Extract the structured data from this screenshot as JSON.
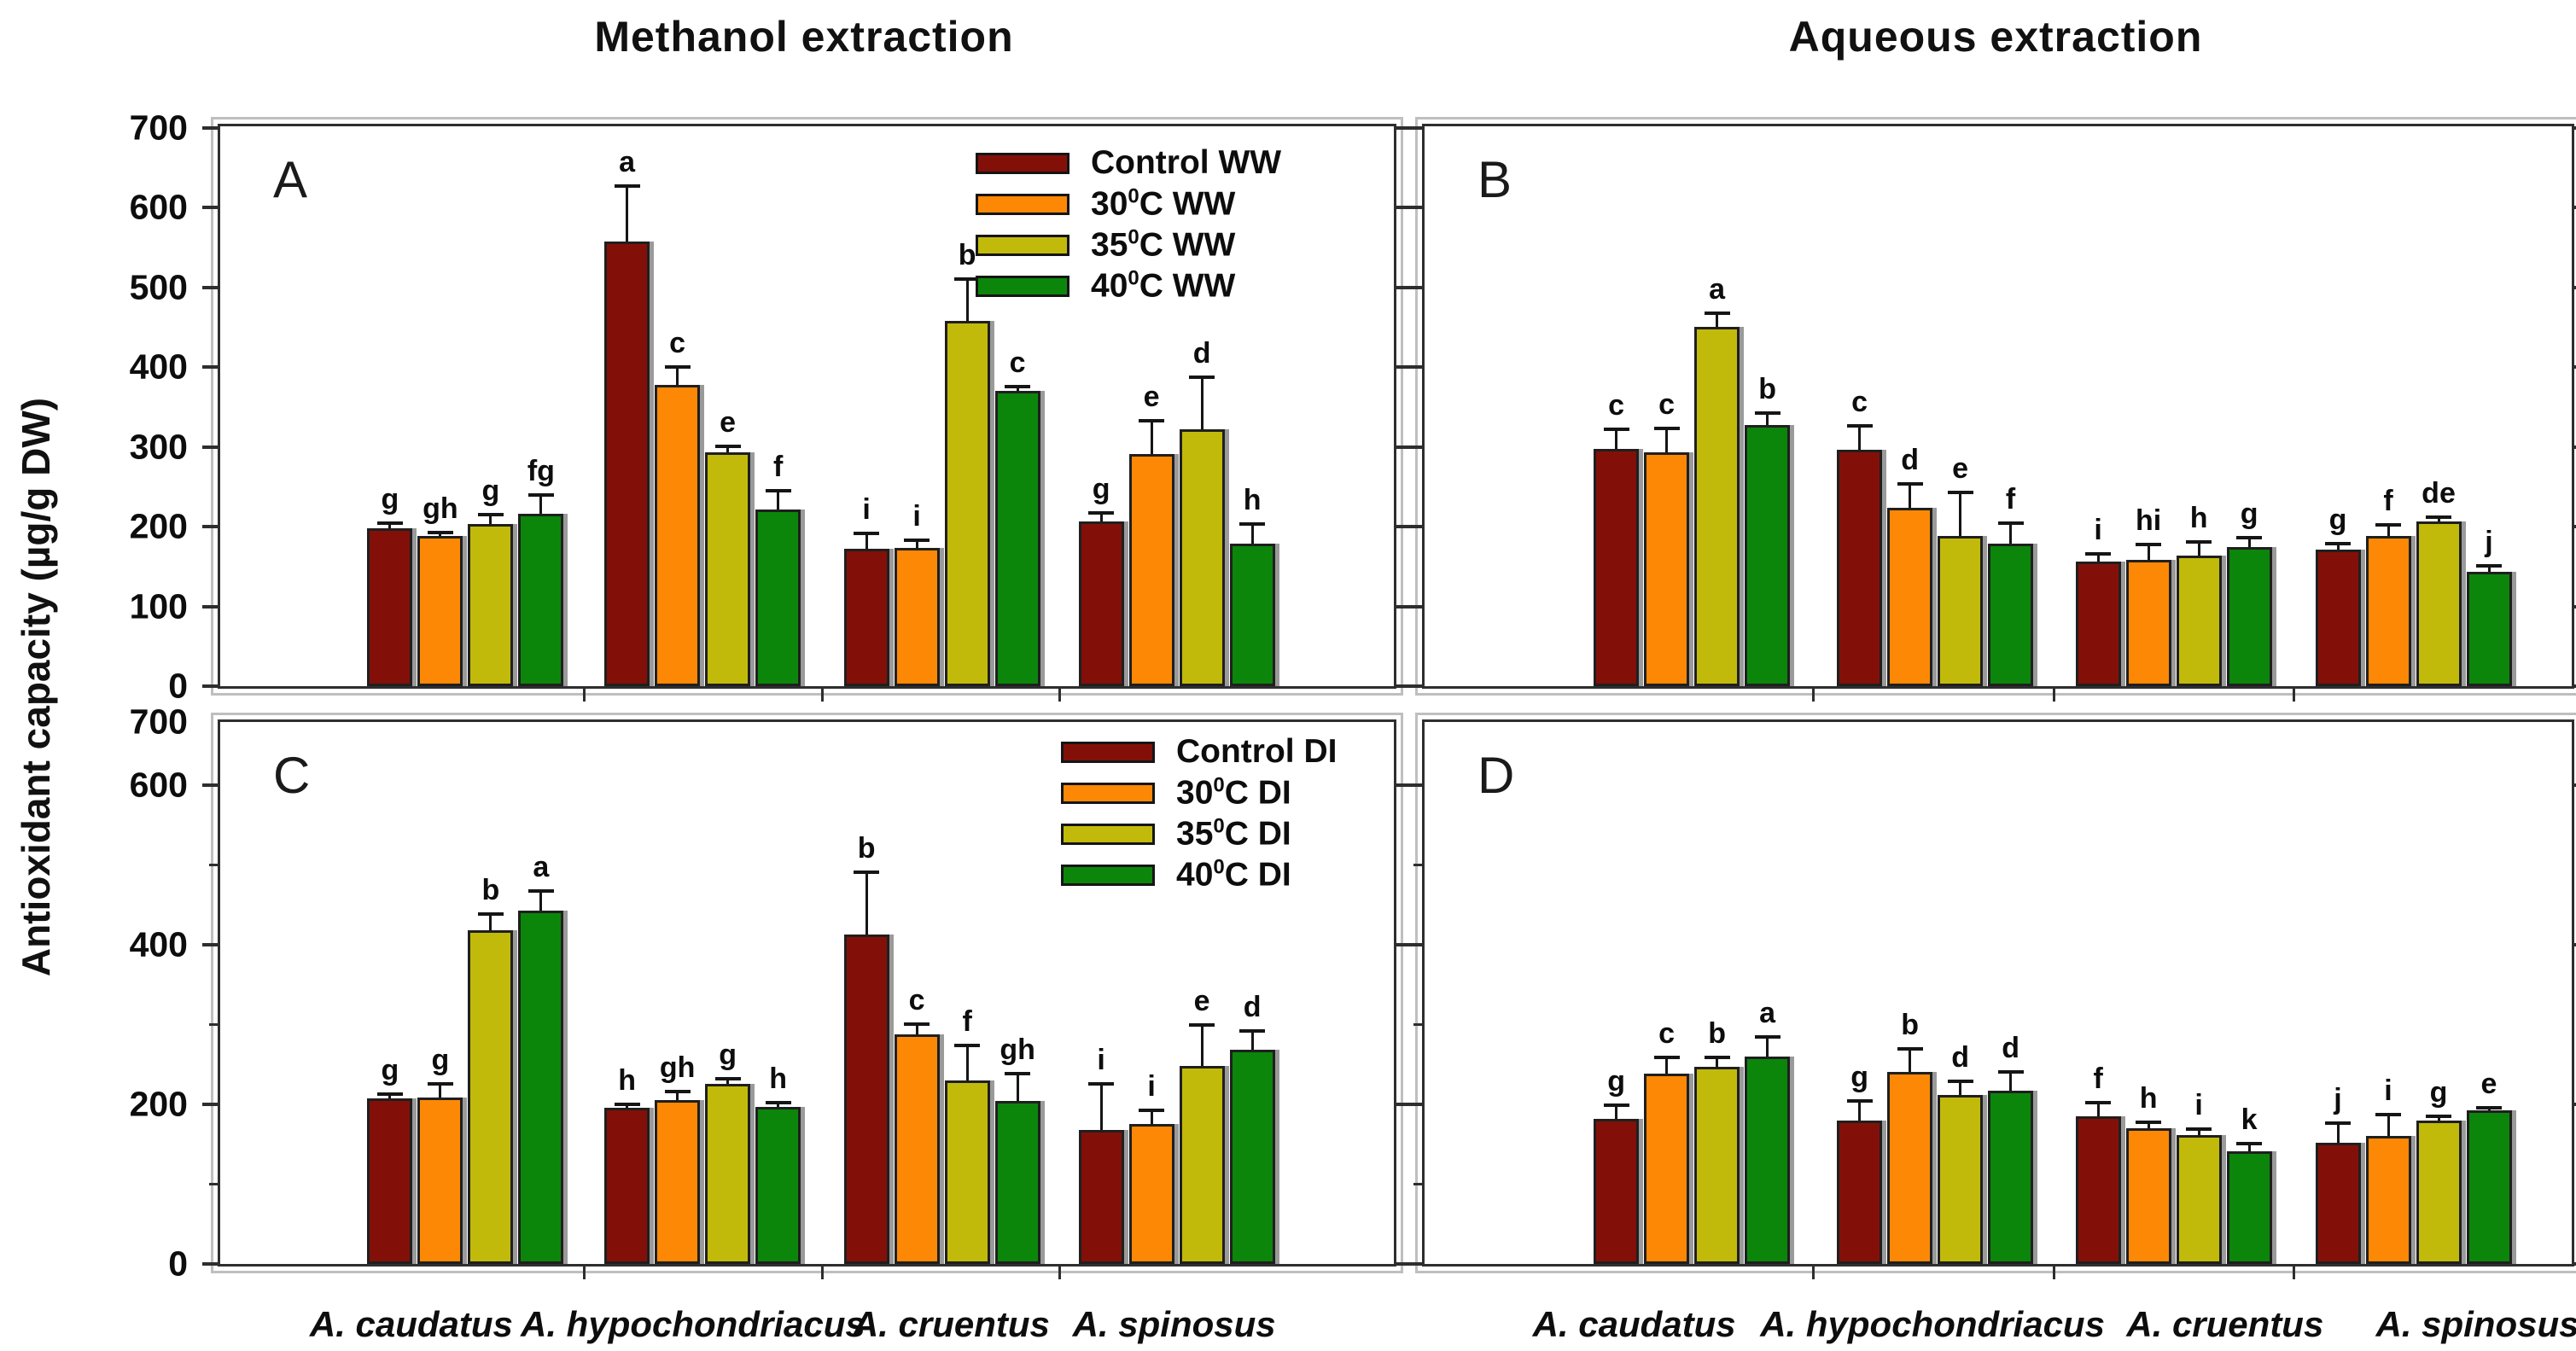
{
  "figure": {
    "column_titles": {
      "left": "Methanol extraction",
      "right": "Aqueous extraction"
    },
    "y_axis_title": "Antioxidant capacity (µg/g DW)",
    "species": [
      "A. caudatus",
      "A. hypochondriacus",
      "A. cruentus",
      "A. spinosus"
    ]
  },
  "colors": {
    "control": "#831008",
    "t30": "#fd8805",
    "t35": "#c2ba0b",
    "t40": "#0b860b",
    "bar_outline": "#1f1f1f",
    "bar_shadow": "#9a9a9a",
    "panel_border": "#2e2e2e",
    "outer_frame": "#bfbfbf"
  },
  "legend_ww": {
    "items": [
      {
        "pre": "Control WW",
        "sup": "",
        "post": ""
      },
      {
        "pre": "30",
        "sup": "0",
        "post": "C WW"
      },
      {
        "pre": "35",
        "sup": "0",
        "post": "C WW"
      },
      {
        "pre": "40",
        "sup": "0",
        "post": "C WW"
      }
    ]
  },
  "legend_di": {
    "items": [
      {
        "pre": "Control DI",
        "sup": "",
        "post": ""
      },
      {
        "pre": "30",
        "sup": "0",
        "post": "C DI"
      },
      {
        "pre": "35",
        "sup": "0",
        "post": "C DI"
      },
      {
        "pre": "40",
        "sup": "0",
        "post": "C DI"
      }
    ]
  },
  "chart_data": [
    {
      "type": "bar",
      "panel": "A",
      "extraction": "Methanol extraction",
      "water": "WW",
      "categories": [
        "A. caudatus",
        "A. hypochondriacus",
        "A. cruentus",
        "A. spinosus"
      ],
      "ylim": [
        0,
        700
      ],
      "ylabel": "Antioxidant capacity (µg/g DW)",
      "yticks": [
        {
          "v": 700,
          "label": "700"
        },
        {
          "v": 600,
          "label": "600"
        },
        {
          "v": 500,
          "label": "500"
        },
        {
          "v": 400,
          "label": "400"
        },
        {
          "v": 300,
          "label": "300"
        },
        {
          "v": 200,
          "label": "200"
        },
        {
          "v": 100,
          "label": "100"
        },
        {
          "v": 0,
          "label": "0"
        }
      ],
      "minor_yticks": [],
      "legend": "legend_ww",
      "series": [
        {
          "name": "Control WW",
          "color_key": "control",
          "values": [
            198,
            557,
            172,
            207
          ],
          "errors": [
            6,
            70,
            20,
            10
          ],
          "letters": [
            "g",
            "a",
            "i",
            "g"
          ]
        },
        {
          "name": "30°C WW",
          "color_key": "t30",
          "values": [
            188,
            378,
            173,
            291
          ],
          "errors": [
            5,
            22,
            10,
            42
          ],
          "letters": [
            "gh",
            "c",
            "i",
            "e"
          ]
        },
        {
          "name": "35°C WW",
          "color_key": "t35",
          "values": [
            203,
            293,
            458,
            322
          ],
          "errors": [
            12,
            8,
            52,
            65
          ],
          "letters": [
            "g",
            "e",
            "b",
            "d"
          ]
        },
        {
          "name": "40°C WW",
          "color_key": "t40",
          "values": [
            216,
            221,
            370,
            179
          ],
          "errors": [
            24,
            24,
            6,
            24
          ],
          "letters": [
            "fg",
            "f",
            "c",
            "h"
          ]
        }
      ]
    },
    {
      "type": "bar",
      "panel": "B",
      "extraction": "Aqueous extraction",
      "water": "WW",
      "categories": [
        "A. caudatus",
        "A. hypochondriacus",
        "A. cruentus",
        "A. spinosus"
      ],
      "ylim": [
        0,
        700
      ],
      "ylabel": "Antioxidant capacity (µg/g DW)",
      "yticks": [
        {
          "v": 700
        },
        {
          "v": 600
        },
        {
          "v": 500
        },
        {
          "v": 400
        },
        {
          "v": 300
        },
        {
          "v": 200
        },
        {
          "v": 100
        },
        {
          "v": 0
        }
      ],
      "minor_yticks": [],
      "legend": null,
      "series": [
        {
          "name": "Control WW",
          "color_key": "control",
          "values": [
            297,
            296,
            156,
            171
          ],
          "errors": [
            25,
            30,
            10,
            8
          ],
          "letters": [
            "c",
            "c",
            "i",
            "g"
          ]
        },
        {
          "name": "30°C WW",
          "color_key": "t30",
          "values": [
            293,
            224,
            158,
            188
          ],
          "errors": [
            30,
            30,
            20,
            14
          ],
          "letters": [
            "c",
            "d",
            "hi",
            "f"
          ]
        },
        {
          "name": "35°C WW",
          "color_key": "t35",
          "values": [
            450,
            188,
            164,
            207
          ],
          "errors": [
            18,
            55,
            17,
            5
          ],
          "letters": [
            "a",
            "e",
            "h",
            "de"
          ]
        },
        {
          "name": "40°C WW",
          "color_key": "t40",
          "values": [
            327,
            179,
            174,
            143
          ],
          "errors": [
            15,
            25,
            12,
            8
          ],
          "letters": [
            "b",
            "f",
            "g",
            "j"
          ]
        }
      ]
    },
    {
      "type": "bar",
      "panel": "C",
      "extraction": "Methanol extraction",
      "water": "DI",
      "categories": [
        "A. caudatus",
        "A. hypochondriacus",
        "A. cruentus",
        "A. spinosus"
      ],
      "ylim": [
        0,
        700
      ],
      "ylabel": "Antioxidant capacity (µg/g DW)",
      "yticks": [
        {
          "v": 700,
          "label": "700"
        },
        {
          "v": 600,
          "label": "600"
        },
        {
          "v": 400,
          "label": "400"
        },
        {
          "v": 200,
          "label": "200"
        },
        {
          "v": 0,
          "label": "0"
        }
      ],
      "minor_yticks": [
        100,
        300,
        500
      ],
      "legend": "legend_di",
      "series": [
        {
          "name": "Control DI",
          "color_key": "control",
          "values": [
            208,
            196,
            413,
            168
          ],
          "errors": [
            5,
            4,
            78,
            58
          ],
          "letters": [
            "g",
            "h",
            "b",
            "i"
          ]
        },
        {
          "name": "30°C DI",
          "color_key": "t30",
          "values": [
            209,
            205,
            288,
            175
          ],
          "errors": [
            17,
            11,
            13,
            18
          ],
          "letters": [
            "g",
            "gh",
            "c",
            "i"
          ]
        },
        {
          "name": "35°C DI",
          "color_key": "t35",
          "values": [
            418,
            226,
            230,
            248
          ],
          "errors": [
            20,
            6,
            44,
            52
          ],
          "letters": [
            "b",
            "g",
            "f",
            "e"
          ]
        },
        {
          "name": "40°C DI",
          "color_key": "t40",
          "values": [
            443,
            197,
            204,
            268
          ],
          "errors": [
            24,
            5,
            34,
            24
          ],
          "letters": [
            "a",
            "h",
            "gh",
            "d"
          ]
        }
      ]
    },
    {
      "type": "bar",
      "panel": "D",
      "extraction": "Aqueous extraction",
      "water": "DI",
      "categories": [
        "A. caudatus",
        "A. hypochondriacus",
        "A. cruentus",
        "A. spinosus"
      ],
      "ylim": [
        0,
        700
      ],
      "ylabel": "Antioxidant capacity (µg/g DW)",
      "yticks": [
        {
          "v": 600
        },
        {
          "v": 400
        },
        {
          "v": 200
        },
        {
          "v": 0
        }
      ],
      "minor_yticks": [
        100,
        300,
        500
      ],
      "legend": null,
      "series": [
        {
          "name": "Control DI",
          "color_key": "control",
          "values": [
            182,
            180,
            185,
            152
          ],
          "errors": [
            17,
            24,
            17,
            24
          ],
          "letters": [
            "g",
            "g",
            "f",
            "j"
          ]
        },
        {
          "name": "30°C DI",
          "color_key": "t30",
          "values": [
            238,
            241,
            170,
            160
          ],
          "errors": [
            21,
            29,
            8,
            27
          ],
          "letters": [
            "c",
            "b",
            "h",
            "i"
          ]
        },
        {
          "name": "35°C DI",
          "color_key": "t35",
          "values": [
            247,
            212,
            161,
            180
          ],
          "errors": [
            12,
            17,
            8,
            5
          ],
          "letters": [
            "b",
            "d",
            "i",
            "g"
          ]
        },
        {
          "name": "40°C DI",
          "color_key": "t40",
          "values": [
            260,
            217,
            141,
            192
          ],
          "errors": [
            24,
            24,
            10,
            4
          ],
          "letters": [
            "a",
            "d",
            "k",
            "e"
          ]
        }
      ]
    }
  ]
}
